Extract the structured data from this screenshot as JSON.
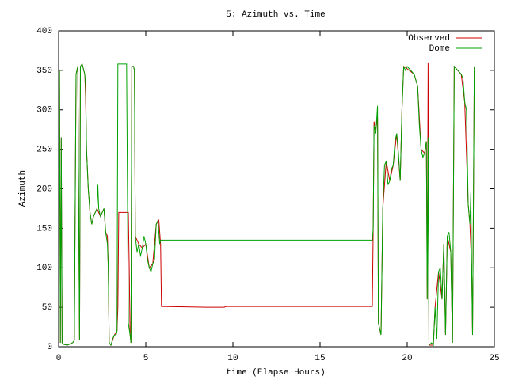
{
  "chart_data": {
    "type": "line",
    "title": "5: Azimuth vs. Time",
    "xlabel": "time (Elapse Hours)",
    "ylabel": "Azimuth",
    "xlim": [
      0,
      25
    ],
    "xticks": [
      0,
      5,
      10,
      15,
      20,
      25
    ],
    "ylim": [
      0,
      400
    ],
    "yticks": [
      0,
      50,
      100,
      150,
      200,
      250,
      300,
      350,
      400
    ],
    "legend": "top-right",
    "series": [
      {
        "name": "Observed",
        "color": "#cc0000",
        "x": [
          0,
          0.05,
          0.1,
          0.15,
          0.2,
          0.3,
          0.5,
          0.8,
          0.9,
          1.0,
          1.1,
          1.2,
          1.25,
          1.35,
          1.5,
          1.55,
          1.6,
          1.7,
          1.8,
          1.9,
          2.0,
          2.2,
          2.4,
          2.6,
          2.7,
          2.8,
          2.85,
          2.9,
          3.0,
          3.2,
          3.35,
          3.4,
          3.45,
          4.0,
          4.05,
          4.1,
          4.15,
          4.2,
          4.3,
          4.35,
          4.4,
          4.6,
          4.8,
          5.0,
          5.2,
          5.4,
          5.6,
          5.75,
          5.85,
          5.9,
          8.5,
          9.5,
          9.6,
          18.0,
          18.05,
          18.1,
          18.2,
          18.3,
          18.35,
          18.5,
          18.6,
          18.8,
          19.0,
          19.2,
          19.4,
          19.6,
          19.7,
          19.8,
          20.0,
          20.4,
          20.6,
          20.8,
          21.0,
          21.1,
          21.15,
          21.2,
          21.25,
          21.5,
          21.6,
          21.8,
          22.0,
          22.1,
          22.2,
          22.3,
          22.5,
          22.6,
          22.7,
          23.1,
          23.3,
          23.5,
          23.6,
          23.7,
          23.75,
          23.85
        ],
        "values": [
          5,
          350,
          5,
          265,
          5,
          3,
          2,
          5,
          8,
          345,
          355,
          8,
          355,
          358,
          345,
          315,
          250,
          200,
          170,
          155,
          165,
          175,
          165,
          175,
          145,
          140,
          100,
          5,
          2,
          15,
          20,
          50,
          170,
          170,
          100,
          15,
          5,
          355,
          355,
          350,
          140,
          130,
          125,
          130,
          100,
          105,
          155,
          160,
          130,
          51,
          50,
          50,
          51,
          51,
          150,
          285,
          275,
          290,
          30,
          15,
          175,
          235,
          210,
          230,
          270,
          210,
          300,
          355,
          352,
          345,
          330,
          250,
          245,
          260,
          60,
          360,
          2,
          2,
          50,
          95,
          60,
          130,
          15,
          140,
          120,
          5,
          355,
          345,
          310,
          180,
          155,
          100,
          15,
          355
        ]
      },
      {
        "name": "Dome",
        "color": "#00a000",
        "x": [
          0,
          0.05,
          0.1,
          0.15,
          0.2,
          0.3,
          0.5,
          0.8,
          0.9,
          1.0,
          1.1,
          1.2,
          1.25,
          1.35,
          1.5,
          1.55,
          1.6,
          1.7,
          1.8,
          1.9,
          2.0,
          2.1,
          2.2,
          2.25,
          2.3,
          2.4,
          2.5,
          2.6,
          2.7,
          2.8,
          2.85,
          2.9,
          3.0,
          3.1,
          3.2,
          3.3,
          3.35,
          3.4,
          3.9,
          4.0,
          4.1,
          4.15,
          4.2,
          4.3,
          4.35,
          4.4,
          4.5,
          4.6,
          4.7,
          4.8,
          4.9,
          5.0,
          5.1,
          5.2,
          5.3,
          5.4,
          5.5,
          5.6,
          5.7,
          5.8,
          5.85,
          18.0,
          18.05,
          18.1,
          18.2,
          18.3,
          18.35,
          18.4,
          18.5,
          18.6,
          18.7,
          18.8,
          18.9,
          19.0,
          19.1,
          19.2,
          19.3,
          19.4,
          19.5,
          19.6,
          19.7,
          19.8,
          19.9,
          20.0,
          20.2,
          20.4,
          20.6,
          20.7,
          20.8,
          20.9,
          21.0,
          21.1,
          21.15,
          21.2,
          21.25,
          21.4,
          21.5,
          21.6,
          21.7,
          21.8,
          21.9,
          22.0,
          22.1,
          22.2,
          22.3,
          22.4,
          22.5,
          22.6,
          22.7,
          22.9,
          23.1,
          23.2,
          23.3,
          23.4,
          23.5,
          23.6,
          23.65,
          23.7,
          23.75,
          23.85
        ],
        "values": [
          5,
          350,
          5,
          265,
          5,
          3,
          2,
          5,
          8,
          345,
          355,
          8,
          355,
          358,
          345,
          330,
          250,
          200,
          170,
          155,
          165,
          170,
          175,
          205,
          175,
          165,
          170,
          175,
          145,
          130,
          100,
          5,
          2,
          10,
          15,
          15,
          20,
          358,
          358,
          30,
          15,
          5,
          355,
          355,
          350,
          140,
          120,
          130,
          115,
          125,
          140,
          130,
          110,
          100,
          95,
          105,
          110,
          155,
          160,
          130,
          135,
          135,
          150,
          280,
          270,
          305,
          30,
          25,
          15,
          175,
          230,
          235,
          205,
          210,
          225,
          230,
          260,
          270,
          245,
          210,
          300,
          355,
          350,
          355,
          350,
          345,
          330,
          280,
          250,
          240,
          245,
          260,
          60,
          265,
          2,
          5,
          2,
          50,
          10,
          95,
          100,
          60,
          130,
          15,
          140,
          145,
          120,
          5,
          355,
          350,
          345,
          340,
          310,
          300,
          180,
          155,
          195,
          100,
          15,
          355
        ]
      }
    ]
  }
}
